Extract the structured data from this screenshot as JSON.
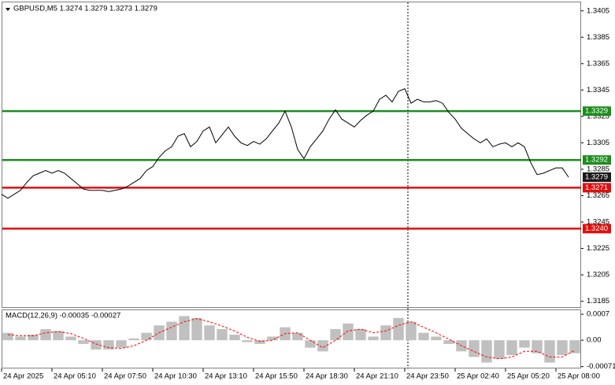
{
  "chart_data": [
    {
      "type": "line",
      "title": "GBPUSD,M5  1.3274 1.3279 1.3273 1.3279",
      "color": "#000000",
      "values": [
        1.3266,
        1.3263,
        1.3266,
        1.3269,
        1.3275,
        1.328,
        1.3282,
        1.3284,
        1.3282,
        1.3284,
        1.3282,
        1.3278,
        1.3274,
        1.327,
        1.3269,
        1.3269,
        1.3269,
        1.3268,
        1.3269,
        1.327,
        1.3272,
        1.3275,
        1.3278,
        1.3284,
        1.3287,
        1.3294,
        1.3299,
        1.3302,
        1.331,
        1.3312,
        1.3302,
        1.3306,
        1.3314,
        1.3317,
        1.3305,
        1.3311,
        1.3317,
        1.331,
        1.3305,
        1.3303,
        1.3306,
        1.3304,
        1.3308,
        1.3314,
        1.332,
        1.3329,
        1.3317,
        1.33,
        1.3293,
        1.3302,
        1.3308,
        1.3314,
        1.3323,
        1.333,
        1.3323,
        1.332,
        1.3317,
        1.3322,
        1.3326,
        1.3329,
        1.3338,
        1.3341,
        1.3336,
        1.3344,
        1.3346,
        1.3335,
        1.3338,
        1.3336,
        1.3336,
        1.3337,
        1.3335,
        1.3328,
        1.3323,
        1.3316,
        1.3312,
        1.3308,
        1.3305,
        1.3308,
        1.3302,
        1.3304,
        1.3305,
        1.3302,
        1.3305,
        1.3302,
        1.329,
        1.3281,
        1.3282,
        1.3284,
        1.3286,
        1.3286,
        1.3279
      ],
      "xlim": [
        0,
        92
      ],
      "xticks": [
        {
          "value": 0,
          "label": "24 Apr 2025"
        },
        {
          "value": 8,
          "label": "24 Apr 05:10"
        },
        {
          "value": 16,
          "label": "24 Apr 07:50"
        },
        {
          "value": 24,
          "label": "24 Apr 10:30"
        },
        {
          "value": 32,
          "label": "24 Apr 13:10"
        },
        {
          "value": 40,
          "label": "24 Apr 15:50"
        },
        {
          "value": 48,
          "label": "24 Apr 18:30"
        },
        {
          "value": 56,
          "label": "24 Apr 21:10"
        },
        {
          "value": 64,
          "label": "24 Apr 23:50"
        },
        {
          "value": 72,
          "label": "25 Apr 02:40"
        },
        {
          "value": 80,
          "label": "25 Apr 05:20"
        },
        {
          "value": 88,
          "label": "25 Apr 08:00"
        }
      ],
      "ylim": [
        1.318,
        1.3412
      ],
      "yticks": [
        1.3405,
        1.3385,
        1.3365,
        1.3345,
        1.3325,
        1.3305,
        1.3285,
        1.3265,
        1.3245,
        1.3225,
        1.3205,
        1.3185
      ],
      "levels": [
        {
          "value": 1.3329,
          "label": "1.3329",
          "color": "#1e8c1e"
        },
        {
          "value": 1.3292,
          "label": "1.3292",
          "color": "#1e8c1e"
        },
        {
          "value": 1.3271,
          "label": "1.3271",
          "color": "#e01010"
        },
        {
          "value": 1.324,
          "label": "1.3240",
          "color": "#e01010"
        }
      ],
      "last_price": 1.3279
    },
    {
      "type": "macd",
      "title": "MACD(12,26,9) -0.00035 -0.00027",
      "histogram_color": "#c0c0c0",
      "signal_color": "#ff0000",
      "histogram": [
        0.0002,
        0.0001,
        0.00015,
        0.0003,
        0.00025,
        0.0001,
        -0.0001,
        -0.00025,
        -0.00025,
        -0.0002,
        5e-05,
        0.0002,
        0.0004,
        0.0005,
        0.00065,
        0.0006,
        0.0004,
        0.0003,
        0.00015,
        -5e-05,
        -0.0001,
        0.0001,
        0.00035,
        0.0002,
        -0.0002,
        -0.0003,
        0.0003,
        0.00045,
        0.0003,
        0.0001,
        0.0004,
        0.0006,
        0.0005,
        0.0002,
        0.0001,
        -0.0001,
        -0.0003,
        -0.00045,
        -0.0006,
        -0.0005,
        -0.0004,
        -0.0002,
        -0.00035,
        -0.0006,
        -0.0004,
        -0.00035
      ],
      "signal": [
        0.00015,
        0.00012,
        0.00012,
        0.0002,
        0.00023,
        0.00018,
        5e-05,
        -0.0001,
        -0.0002,
        -0.00022,
        -0.00015,
        0,
        0.0002,
        0.00035,
        0.0005,
        0.00058,
        0.0005,
        0.00038,
        0.00025,
        8e-05,
        -3e-05,
        0,
        0.00018,
        0.0002,
        0,
        -0.0002,
        0,
        0.00025,
        0.0003,
        0.0002,
        0.00025,
        0.0004,
        0.0005,
        0.00035,
        0.0002,
        3e-05,
        -0.00015,
        -0.0003,
        -0.00045,
        -0.0005,
        -0.00045,
        -0.0003,
        -0.0003,
        -0.00045,
        -0.00045,
        -0.00027
      ],
      "xlim": [
        0,
        46
      ],
      "ylim": [
        -0.00076,
        0.00083
      ],
      "yticks": [
        0.0007,
        {
          "value": 0,
          "label": "0.00"
        },
        -0.00071
      ]
    }
  ]
}
